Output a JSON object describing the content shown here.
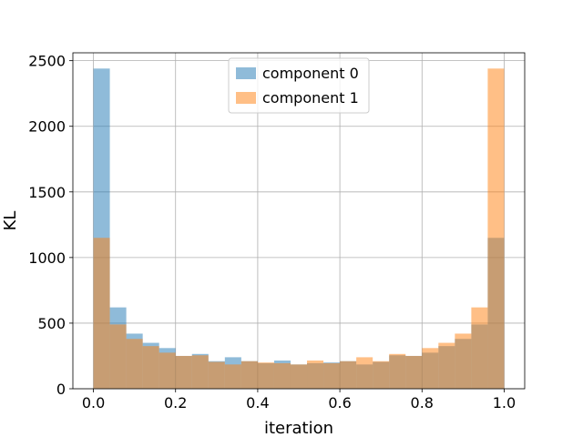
{
  "chart_data": {
    "type": "bar",
    "subtype": "overlapping histogram",
    "xlabel": "iteration",
    "ylabel": "KL",
    "xlim": [
      -0.05,
      1.05
    ],
    "ylim": [
      0,
      2560
    ],
    "grid": true,
    "legend_position": "top-center",
    "x_ticks": [
      "0.0",
      "0.2",
      "0.4",
      "0.6",
      "0.8",
      "1.0"
    ],
    "y_ticks": [
      "0",
      "500",
      "1000",
      "1500",
      "2000",
      "2500"
    ],
    "bin_edges": [
      0.0,
      0.04,
      0.08,
      0.12,
      0.16,
      0.2,
      0.24,
      0.28,
      0.32,
      0.36,
      0.4,
      0.44,
      0.48,
      0.52,
      0.56,
      0.6,
      0.64,
      0.68,
      0.72,
      0.76,
      0.8,
      0.84,
      0.88,
      0.92,
      0.96,
      1.0
    ],
    "series": [
      {
        "name": "component 0",
        "color": "#1f77b4",
        "alpha": 0.5,
        "values": [
          2440,
          620,
          420,
          350,
          310,
          250,
          265,
          210,
          240,
          210,
          195,
          215,
          185,
          195,
          200,
          210,
          185,
          205,
          255,
          250,
          275,
          325,
          380,
          490,
          1150
        ]
      },
      {
        "name": "component 1",
        "color": "#ff7f0e",
        "alpha": 0.5,
        "values": [
          1150,
          490,
          380,
          325,
          275,
          250,
          255,
          205,
          185,
          210,
          200,
          195,
          185,
          215,
          195,
          210,
          240,
          210,
          265,
          250,
          310,
          350,
          420,
          620,
          2440
        ]
      }
    ]
  }
}
